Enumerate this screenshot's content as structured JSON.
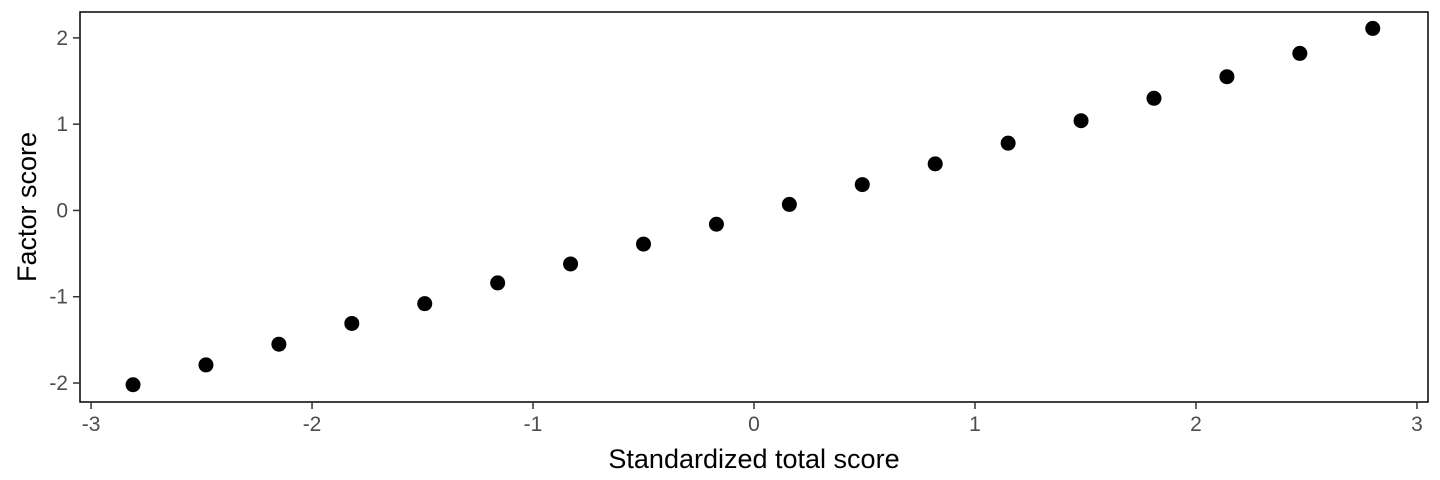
{
  "chart_data": {
    "type": "scatter",
    "title": "",
    "xlabel": "Standardized total score",
    "ylabel": "Factor score",
    "xlim": [
      -3.05,
      3.05
    ],
    "ylim": [
      -2.22,
      2.3
    ],
    "x_ticks": [
      -3,
      -2,
      -1,
      0,
      1,
      2,
      3
    ],
    "x_tick_labels": [
      "-3",
      "-2",
      "-1",
      "0",
      "1",
      "2",
      "3"
    ],
    "y_ticks": [
      -2,
      -1,
      0,
      1,
      2
    ],
    "y_tick_labels": [
      "-2",
      "-1",
      "0",
      "1",
      "2"
    ],
    "grid": false,
    "legend": "none",
    "series": [
      {
        "color": "#000000",
        "x": [
          -2.81,
          -2.48,
          -2.15,
          -1.82,
          -1.49,
          -1.16,
          -0.83,
          -0.5,
          -0.17,
          0.16,
          0.49,
          0.82,
          1.15,
          1.48,
          1.81,
          2.14,
          2.47,
          2.8
        ],
        "y": [
          -2.02,
          -1.79,
          -1.55,
          -1.31,
          -1.08,
          -0.84,
          -0.62,
          -0.39,
          -0.16,
          0.07,
          0.3,
          0.54,
          0.78,
          1.04,
          1.3,
          1.55,
          1.82,
          2.11
        ]
      }
    ]
  }
}
